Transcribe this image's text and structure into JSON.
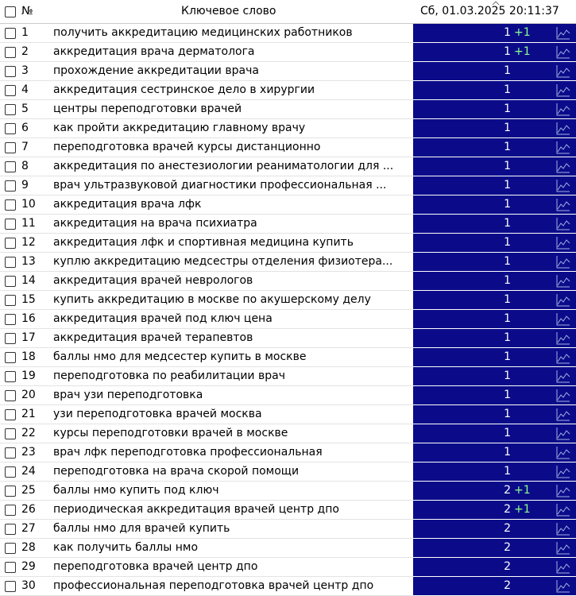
{
  "header": {
    "number": "№",
    "keyword": "Ключевое слово",
    "date": "Сб, 01.03.2025 20:11:37"
  },
  "rows": [
    {
      "num": 1,
      "keyword": "получить аккредитацию медицинских работников",
      "position": 1,
      "delta": "+1"
    },
    {
      "num": 2,
      "keyword": "аккредитация врача дерматолога",
      "position": 1,
      "delta": "+1"
    },
    {
      "num": 3,
      "keyword": "прохождение аккредитации врача",
      "position": 1
    },
    {
      "num": 4,
      "keyword": "аккредитация сестринское дело в хирургии",
      "position": 1
    },
    {
      "num": 5,
      "keyword": "центры переподготовки врачей",
      "position": 1
    },
    {
      "num": 6,
      "keyword": "как пройти аккредитацию главному врачу",
      "position": 1
    },
    {
      "num": 7,
      "keyword": "переподготовка врачей курсы дистанционно",
      "position": 1
    },
    {
      "num": 8,
      "keyword": "аккредитация по анестезиологии реаниматологии для ...",
      "position": 1
    },
    {
      "num": 9,
      "keyword": "врач ультразвуковой диагностики профессиональная ...",
      "position": 1
    },
    {
      "num": 10,
      "keyword": "аккредитация врача лфк",
      "position": 1
    },
    {
      "num": 11,
      "keyword": "аккредитация на врача психиатра",
      "position": 1
    },
    {
      "num": 12,
      "keyword": "аккредитация лфк и спортивная медицина купить",
      "position": 1
    },
    {
      "num": 13,
      "keyword": "куплю аккредитацию медсестры отделения физиотера...",
      "position": 1
    },
    {
      "num": 14,
      "keyword": "аккредитация врачей неврологов",
      "position": 1
    },
    {
      "num": 15,
      "keyword": "купить аккредитацию в москве по акушерскому делу",
      "position": 1
    },
    {
      "num": 16,
      "keyword": "аккредитация врачей под ключ цена",
      "position": 1
    },
    {
      "num": 17,
      "keyword": "аккредитация врачей терапевтов",
      "position": 1
    },
    {
      "num": 18,
      "keyword": "баллы нмо для медсестер купить в москве",
      "position": 1
    },
    {
      "num": 19,
      "keyword": "переподготовка по реабилитации врач",
      "position": 1
    },
    {
      "num": 20,
      "keyword": "врач узи переподготовка",
      "position": 1
    },
    {
      "num": 21,
      "keyword": "узи переподготовка врачей москва",
      "position": 1
    },
    {
      "num": 22,
      "keyword": "курсы переподготовки врачей в москве",
      "position": 1
    },
    {
      "num": 23,
      "keyword": "врач лфк переподготовка профессиональная",
      "position": 1
    },
    {
      "num": 24,
      "keyword": "переподготовка на врача скорой помощи",
      "position": 1
    },
    {
      "num": 25,
      "keyword": "баллы нмо купить под ключ",
      "position": 2,
      "delta": "+1"
    },
    {
      "num": 26,
      "keyword": "периодическая аккредитация врачей центр дпо",
      "position": 2,
      "delta": "+1"
    },
    {
      "num": 27,
      "keyword": "баллы нмо для врачей купить",
      "position": 2
    },
    {
      "num": 28,
      "keyword": "как получить баллы нмо",
      "position": 2
    },
    {
      "num": 29,
      "keyword": "переподготовка врачей центр дпо",
      "position": 2
    },
    {
      "num": 30,
      "keyword": "профессиональная переподготовка врачей центр дпо",
      "position": 2
    }
  ]
}
